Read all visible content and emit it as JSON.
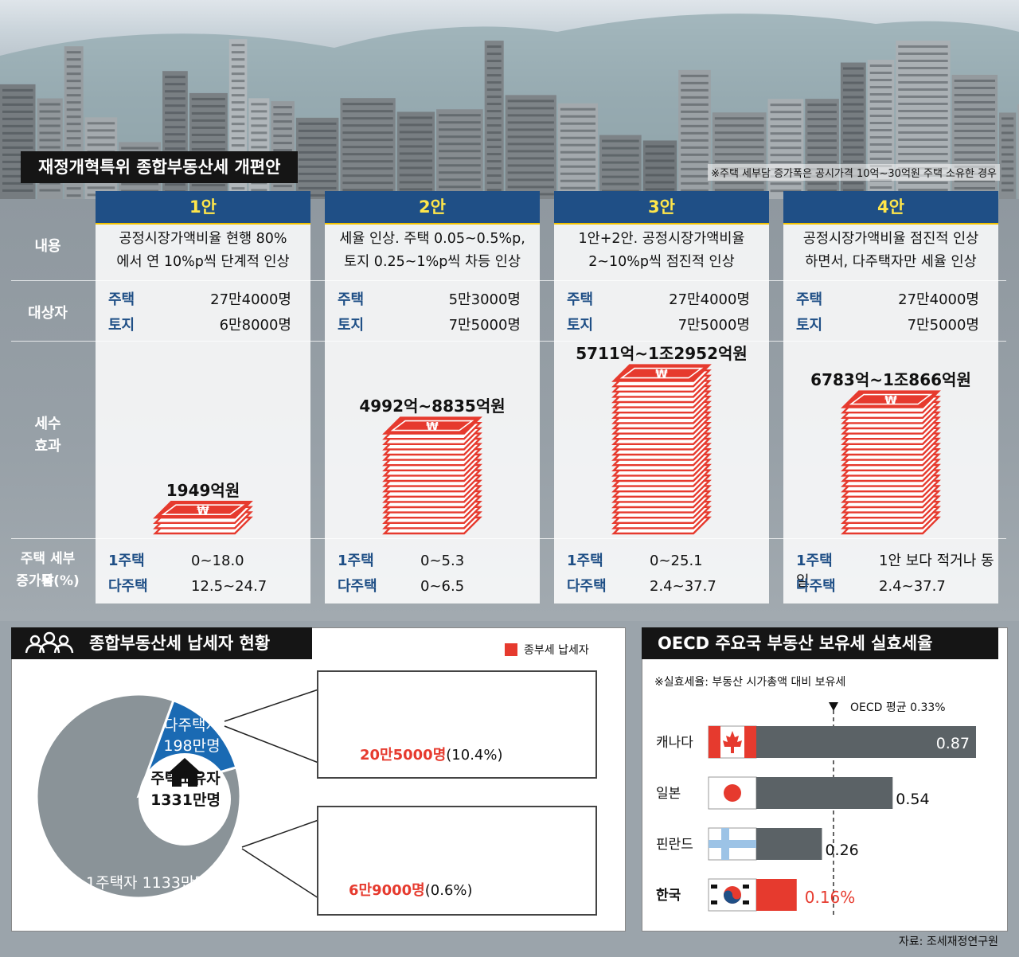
{
  "header": {
    "title": "재정개혁특위 종합부동산세 개편안",
    "note": "※주택 세부담 증가폭은 공시가격 10억~30억원 주택 소유한 경우"
  },
  "row_labels": {
    "content": "내용",
    "target": "대상자",
    "effect_1": "세수",
    "effect_2": "효과",
    "burden_1": "주택 세부담",
    "burden_2": "증가폭(%)"
  },
  "plans": [
    {
      "name": "1안",
      "desc1": "공정시장가액비율 현행 80%",
      "desc2": "에서 연 10%p씩 단계적 인상",
      "house_label": "주택",
      "house_value": "27만4000명",
      "land_label": "토지",
      "land_value": "6만8000명",
      "revenue": "1949억원",
      "one_label": "1주택",
      "one_value": "0~18.0",
      "multi_label": "다주택",
      "multi_value": "12.5~24.7"
    },
    {
      "name": "2안",
      "desc1": "세율 인상. 주택 0.05~0.5%p,",
      "desc2": "토지 0.25~1%p씩 차등 인상",
      "house_label": "주택",
      "house_value": "5만3000명",
      "land_label": "토지",
      "land_value": "7만5000명",
      "revenue": "4992억~8835억원",
      "one_label": "1주택",
      "one_value": "0~5.3",
      "multi_label": "다주택",
      "multi_value": "0~6.5"
    },
    {
      "name": "3안",
      "desc1": "1안+2안. 공정시장가액비율",
      "desc2": "2~10%p씩 점진적 인상",
      "house_label": "주택",
      "house_value": "27만4000명",
      "land_label": "토지",
      "land_value": "7만5000명",
      "revenue": "5711억~1조2952억원",
      "one_label": "1주택",
      "one_value": "0~25.1",
      "multi_label": "다주택",
      "multi_value": "2.4~37.7"
    },
    {
      "name": "4안",
      "desc1": "공정시장가액비율 점진적 인상",
      "desc2": "하면서, 다주택자만 세율 인상",
      "house_label": "주택",
      "house_value": "27만4000명",
      "land_label": "토지",
      "land_value": "7만5000명",
      "revenue": "6783억~1조866억원",
      "one_label": "1주택",
      "one_value": "1안 보다 적거나 동일",
      "multi_label": "다주택",
      "multi_value": "2.4~37.7"
    }
  ],
  "taxpayers": {
    "title": "종합부동산세 납세자 현황",
    "legend": "종부세 납세자",
    "center_label": "주택소유자",
    "center_value": "1331만명",
    "multi_label": "다주택자",
    "multi_value": "198만명",
    "single_label": "1주택자 1133만명",
    "multi_bar_value": "198만명",
    "multi_taxpayers": "20만5000명",
    "multi_pct": "(10.4%)",
    "single_bar_value": "1133만명",
    "single_taxpayers": "6만9000명",
    "single_pct": "(0.6%)"
  },
  "oecd": {
    "title": "OECD 주요국 부동산 보유세 실효세율",
    "note": "※실효세율: 부동산 시가총액 대비 보유세",
    "avg_label": "OECD 평균",
    "avg_value": "0.33%",
    "source": "자료: 조세재정연구원"
  },
  "chart_data": [
    {
      "type": "bar",
      "categories": [
        "1안",
        "2안",
        "3안",
        "4안"
      ],
      "series": [
        {
          "name": "",
          "values": [
            1949,
            8835,
            12952,
            10866
          ]
        }
      ],
      "ranges_min": [
        1949,
        4992,
        5711,
        6783
      ],
      "ylabel": ""
    },
    {
      "type": "pie",
      "labels": [
        "다주택자",
        "1주택자"
      ],
      "values": [
        198,
        1133
      ],
      "colors": [
        "#1a6ab3",
        "#8a9398"
      ]
    },
    {
      "type": "bar",
      "orientation": "horizontal",
      "categories": [
        "다주택자",
        "1주택자"
      ],
      "series": [
        {
          "name": "종부세 납세자",
          "values": [
            20.5,
            6.9
          ],
          "color": "#e63a2e"
        },
        {
          "name": "",
          "values": [
            198,
            1133
          ]
        }
      ]
    },
    {
      "type": "bar",
      "orientation": "horizontal",
      "categories": [
        "캐나다",
        "일본",
        "핀란드",
        "한국"
      ],
      "values": [
        0.87,
        0.54,
        0.26,
        0.16
      ],
      "value_labels": [
        "0.87",
        "0.54",
        "0.26",
        "0.16%"
      ],
      "reference_line": 0.33,
      "colors": {
        "normal": "#5b6266",
        "korea": "#e63a2e"
      }
    }
  ]
}
